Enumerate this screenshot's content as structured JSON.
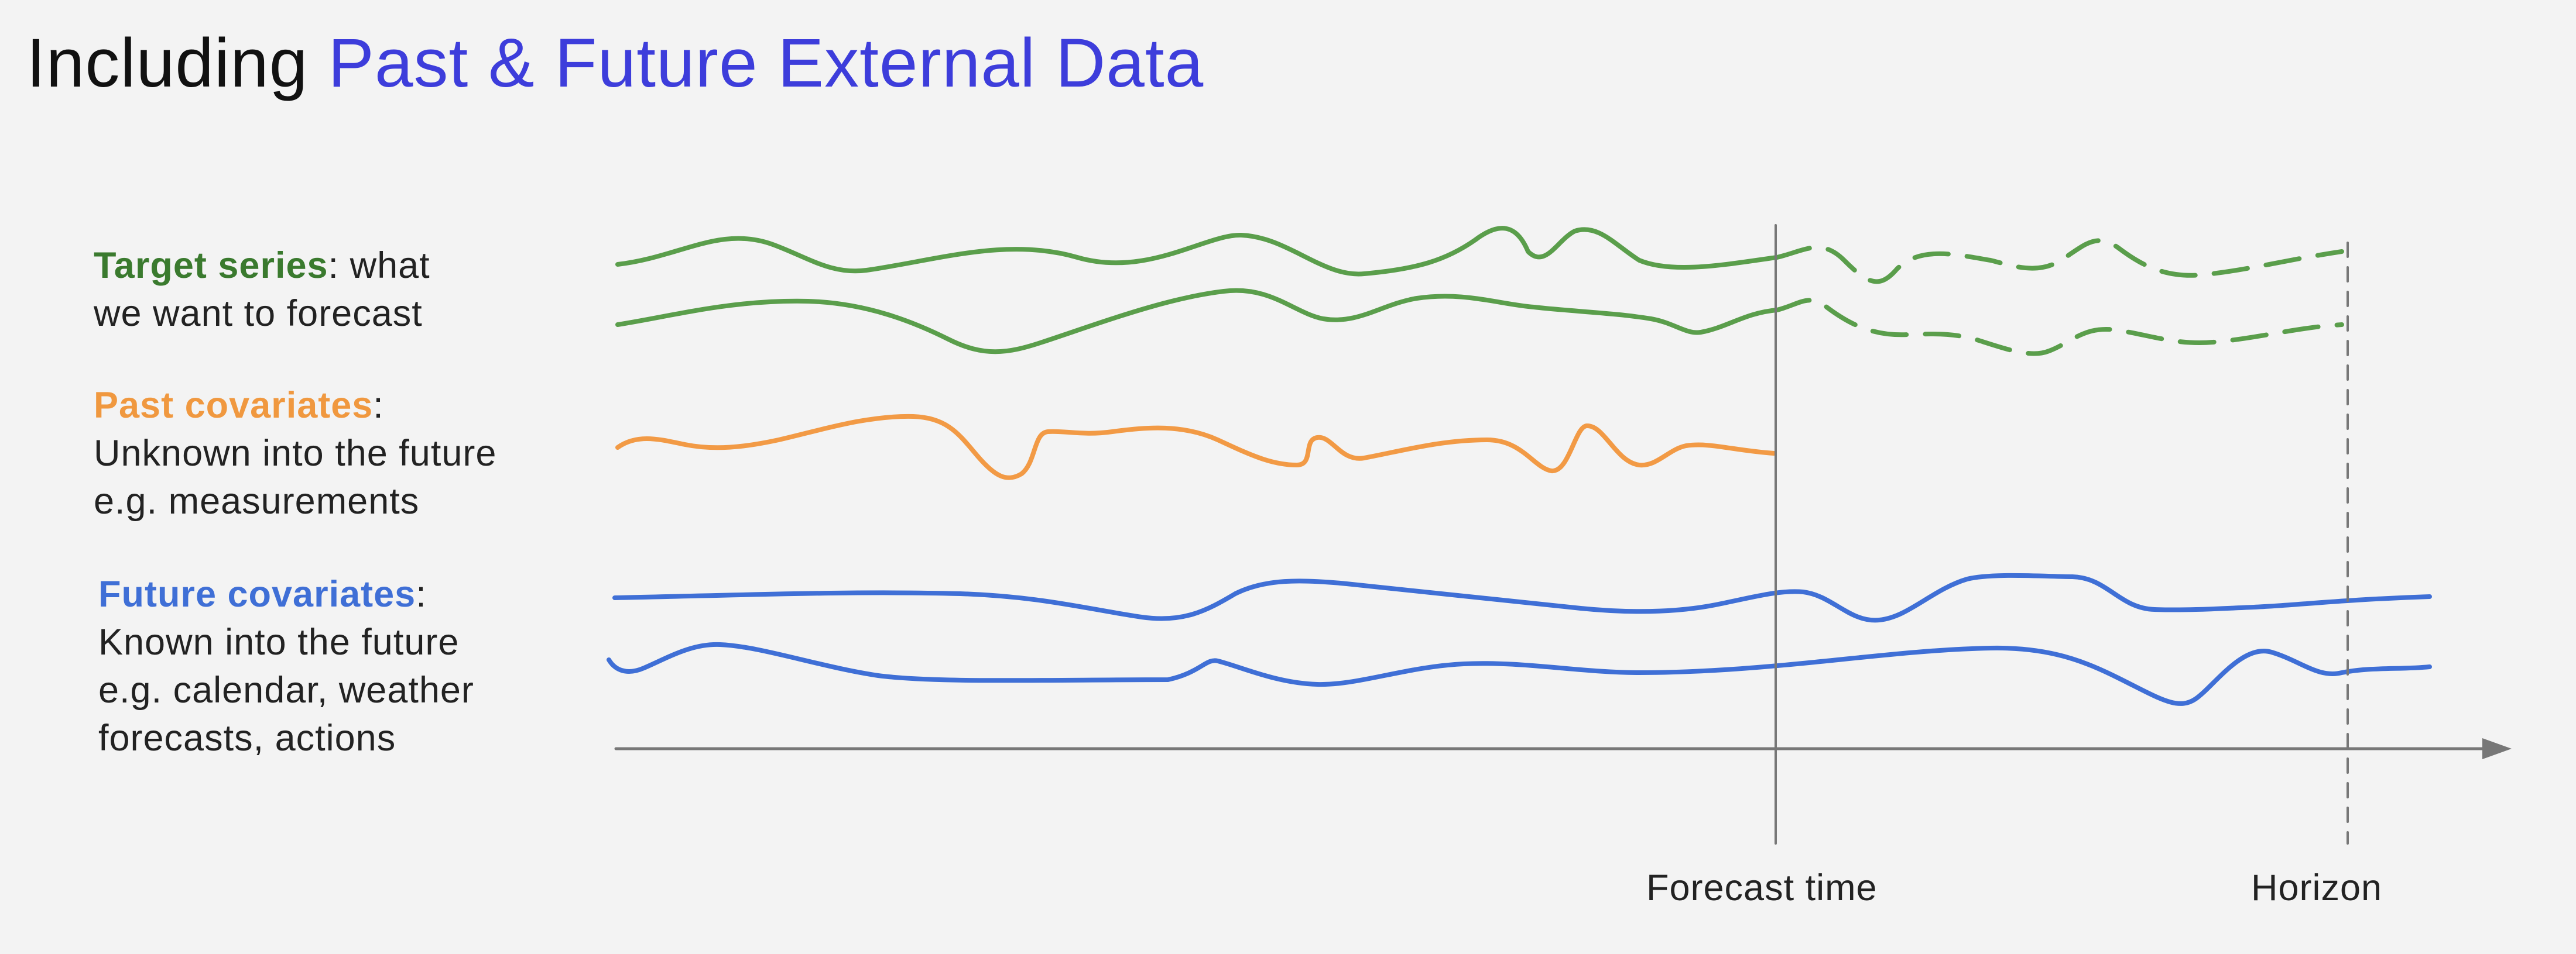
{
  "title": {
    "prefix": "Including",
    "highlight": "Past & Future External Data"
  },
  "legend": {
    "target": {
      "heading": "Target series",
      "colon": ":",
      "rest": " what",
      "lines": [
        "we want to forecast"
      ]
    },
    "past": {
      "heading": "Past covariates",
      "colon": ":",
      "lines": [
        "Unknown into the future",
        "e.g. measurements"
      ]
    },
    "future": {
      "heading": "Future covariates",
      "colon": ":",
      "lines": [
        "Known into the future",
        "e.g. calendar, weather",
        "forecasts, actions"
      ]
    }
  },
  "axis": {
    "forecast_label": "Forecast time",
    "horizon_label": "Horizon"
  },
  "colors": {
    "title_highlight": "#3d3ddb",
    "target": "#5a9e4b",
    "target_text": "#3a7a2e",
    "past": "#f29a45",
    "past_text": "#f0983f",
    "future": "#3f6fd6",
    "future_text": "#3f6fd6",
    "axis": "#777777"
  },
  "icons": {
    "axis_arrow": "arrow-head"
  }
}
